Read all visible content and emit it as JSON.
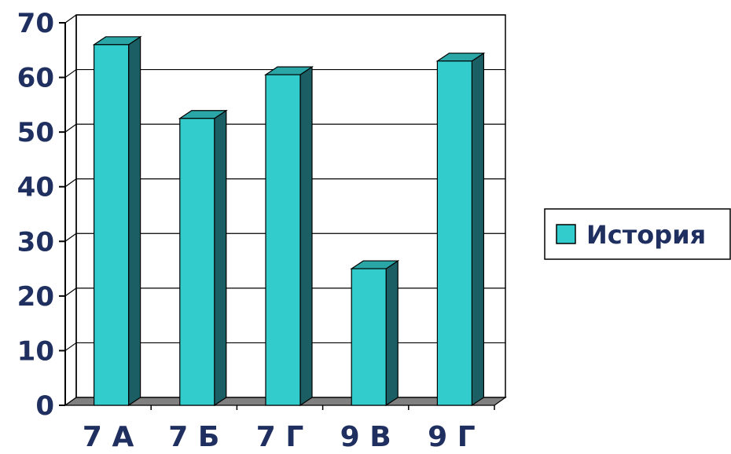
{
  "chart_data": {
    "type": "bar",
    "categories": [
      "7 А",
      "7 Б",
      "7 Г",
      "9 В",
      "9 Г"
    ],
    "series": [
      {
        "name": "История",
        "values": [
          66,
          52.5,
          60.5,
          25,
          63
        ]
      }
    ],
    "yticks": [
      "0",
      "10",
      "20",
      "30",
      "40",
      "50",
      "60",
      "70"
    ],
    "ylim": [
      0,
      70
    ],
    "grid": true,
    "legend_position": "right",
    "style": "3d-column",
    "colors": {
      "bar_front": "#33cccc",
      "bar_side": "#1b5e64",
      "bar_top": "#2aa6a6",
      "floor": "#808080",
      "grid": "#000000",
      "text": "#1f2f5f"
    }
  }
}
